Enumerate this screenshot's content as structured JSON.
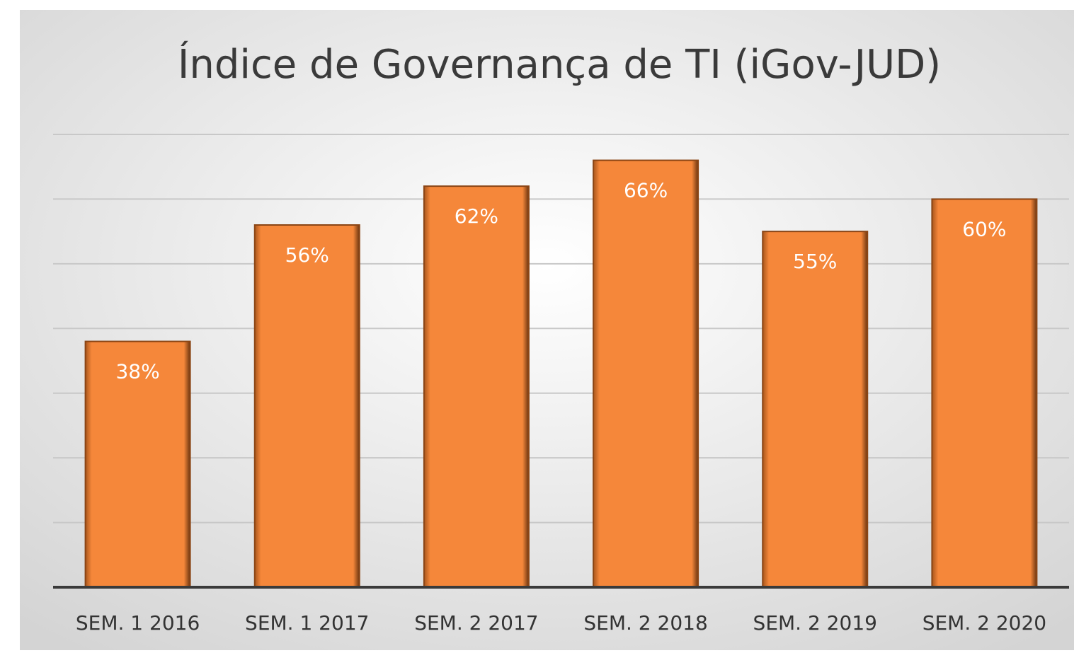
{
  "chart_data": {
    "type": "bar",
    "title": "Índice de Governança de TI (iGov-JUD)",
    "categories": [
      "SEM. 1 2016",
      "SEM. 1 2017",
      "SEM. 2 2017",
      "SEM. 2 2018",
      "SEM. 2 2019",
      "SEM. 2 2020"
    ],
    "values": [
      38,
      56,
      62,
      66,
      55,
      60
    ],
    "value_labels": [
      "38%",
      "56%",
      "62%",
      "66%",
      "55%",
      "60%"
    ],
    "color": "#f5873a",
    "ylim": [
      0,
      70
    ],
    "yticks": [
      0,
      10,
      20,
      30,
      40,
      50,
      60,
      70
    ],
    "grid": true
  }
}
